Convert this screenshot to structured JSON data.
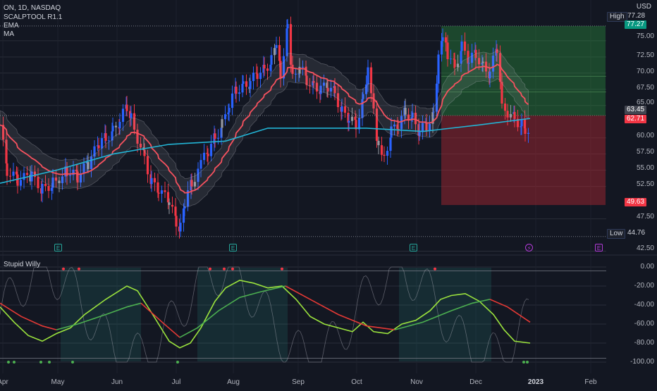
{
  "header": {
    "symbol_line": "ON, 1D, NASDAQ",
    "indicators": [
      "SCALPTOOL R1.1",
      "EMA",
      "MA"
    ],
    "currency": "USD"
  },
  "price_axis": {
    "ticks": [
      "75.00",
      "72.50",
      "70.00",
      "67.50",
      "65.00",
      "60.00",
      "57.50",
      "55.00",
      "52.50",
      "47.50",
      "42.50"
    ],
    "high_label": "High",
    "high_value": "77.28",
    "low_label": "Low",
    "low_value": "44.76",
    "target_value": "77.27",
    "entry_value": "63.45",
    "current_value": "62.71",
    "stop_value": "49.63"
  },
  "oscillator": {
    "name": "Stupid Willy",
    "ticks": [
      "0.00",
      "-20.00",
      "-40.00",
      "-60.00",
      "-80.00",
      "-100.00"
    ]
  },
  "time_axis": {
    "months": [
      "Apr",
      "May",
      "Jun",
      "Jul",
      "Aug",
      "Sep",
      "Oct",
      "Nov",
      "Dec",
      "2023",
      "Feb"
    ]
  },
  "events": [
    {
      "icon": "earnings-icon",
      "glyph": "E"
    },
    {
      "icon": "earnings-icon",
      "glyph": "E"
    },
    {
      "icon": "earnings-icon",
      "glyph": "E"
    },
    {
      "icon": "lightning-icon",
      "glyph": "⚡"
    },
    {
      "icon": "earnings-icon",
      "glyph": "E"
    }
  ],
  "colors": {
    "background": "#131722",
    "up_candle": "#2962ff",
    "down_candle": "#f23645",
    "neutral_candle": "#9598a1",
    "ema": "#f7525f",
    "ma": "#22b5d6",
    "profit_zone": "#1b5e20",
    "loss_zone": "#6d1b1b",
    "osc_fast": "#9be33d",
    "osc_slow_up": "#4caf50",
    "osc_slow_down": "#e53935"
  }
}
